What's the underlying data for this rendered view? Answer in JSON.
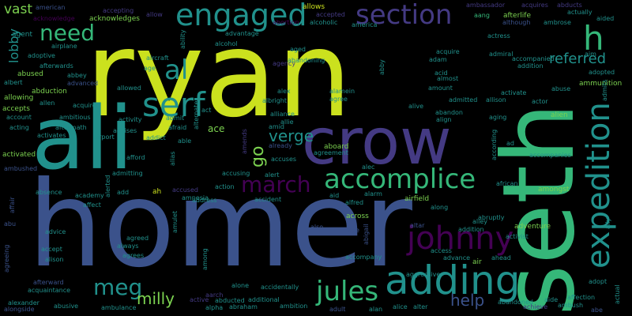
{
  "palette": {
    "background": "#000000",
    "yellow": "#cbe11e",
    "green": "#7cd250",
    "mint": "#35b779",
    "teal": "#21918c",
    "slate": "#3b528b",
    "indigo": "#443a83",
    "violet": "#440154",
    "cyan": "#2c728e"
  },
  "words": [
    {
      "text": "ryan",
      "color": "yellow",
      "weight": 1.0
    },
    {
      "text": "homer",
      "color": "slate",
      "weight": 0.9
    },
    {
      "text": "seth",
      "color": "mint",
      "weight": 0.85
    },
    {
      "text": "ali",
      "color": "teal",
      "weight": 0.65
    },
    {
      "text": "crow",
      "color": "indigo",
      "weight": 0.5
    },
    {
      "text": "adding",
      "color": "teal",
      "weight": 0.35
    },
    {
      "text": "accomplice",
      "color": "mint",
      "weight": 0.3
    },
    {
      "text": "expedition",
      "color": "teal",
      "weight": 0.3
    },
    {
      "text": "johnny",
      "color": "violet",
      "weight": 0.3
    },
    {
      "text": "serf",
      "color": "teal",
      "weight": 0.28
    },
    {
      "text": "engaged",
      "color": "teal",
      "weight": 0.25
    },
    {
      "text": "section",
      "color": "indigo",
      "weight": 0.22
    },
    {
      "text": "march",
      "color": "violet",
      "weight": 0.2
    },
    {
      "text": "jules",
      "color": "mint",
      "weight": 0.2
    },
    {
      "text": "meg",
      "color": "teal",
      "weight": 0.18
    },
    {
      "text": "al",
      "color": "teal",
      "weight": 0.18
    },
    {
      "text": "need",
      "color": "mint",
      "weight": 0.16
    },
    {
      "text": "h",
      "color": "mint",
      "weight": 0.2
    },
    {
      "text": "referred",
      "color": "teal",
      "weight": 0.14
    },
    {
      "text": "milly",
      "color": "green",
      "weight": 0.12
    },
    {
      "text": "help",
      "color": "slate",
      "weight": 0.12
    },
    {
      "text": "verge",
      "color": "teal",
      "weight": 0.11
    },
    {
      "text": "vast",
      "color": "green",
      "weight": 0.1
    },
    {
      "text": "lobby",
      "color": "teal",
      "weight": 0.08
    },
    {
      "text": "go",
      "color": "green",
      "weight": 0.1
    },
    {
      "text": "american",
      "color": "slate",
      "weight": 0.04
    },
    {
      "text": "acknowledge",
      "color": "violet",
      "weight": 0.04
    },
    {
      "text": "accepting",
      "color": "indigo",
      "weight": 0.04
    },
    {
      "text": "acknowledges",
      "color": "green",
      "weight": 0.05
    },
    {
      "text": "allow",
      "color": "indigo",
      "weight": 0.04
    },
    {
      "text": "allows",
      "color": "yellow",
      "weight": 0.05
    },
    {
      "text": "accepted",
      "color": "indigo",
      "weight": 0.04
    },
    {
      "text": "ambassador",
      "color": "indigo",
      "weight": 0.04
    },
    {
      "text": "acquires",
      "color": "indigo",
      "weight": 0.04
    },
    {
      "text": "abducts",
      "color": "indigo",
      "weight": 0.04
    },
    {
      "text": "actually",
      "color": "teal",
      "weight": 0.04
    },
    {
      "text": "aided",
      "color": "teal",
      "weight": 0.04
    },
    {
      "text": "afterlife",
      "color": "green",
      "weight": 0.05
    },
    {
      "text": "aang",
      "color": "mint",
      "weight": 0.04
    },
    {
      "text": "although",
      "color": "slate",
      "weight": 0.04
    },
    {
      "text": "ambrose",
      "color": "teal",
      "weight": 0.04
    },
    {
      "text": "alcoholic",
      "color": "teal",
      "weight": 0.04
    },
    {
      "text": "america",
      "color": "teal",
      "weight": 0.04
    },
    {
      "text": "abortion",
      "color": "violet",
      "weight": 0.04
    },
    {
      "text": "agent",
      "color": "teal",
      "weight": 0.05
    },
    {
      "text": "airplane",
      "color": "teal",
      "weight": 0.04
    },
    {
      "text": "adoptive",
      "color": "teal",
      "weight": 0.04
    },
    {
      "text": "afterwards",
      "color": "teal",
      "weight": 0.04
    },
    {
      "text": "abused",
      "color": "green",
      "weight": 0.05
    },
    {
      "text": "albert",
      "color": "teal",
      "weight": 0.04
    },
    {
      "text": "abbey",
      "color": "teal",
      "weight": 0.04
    },
    {
      "text": "advanced",
      "color": "slate",
      "weight": 0.04
    },
    {
      "text": "abduction",
      "color": "green",
      "weight": 0.05
    },
    {
      "text": "allowing",
      "color": "green",
      "weight": 0.05
    },
    {
      "text": "allen",
      "color": "teal",
      "weight": 0.04
    },
    {
      "text": "accepts",
      "color": "green",
      "weight": 0.05
    },
    {
      "text": "account",
      "color": "teal",
      "weight": 0.04
    },
    {
      "text": "acting",
      "color": "teal",
      "weight": 0.04
    },
    {
      "text": "activates",
      "color": "teal",
      "weight": 0.04
    },
    {
      "text": "activated",
      "color": "green",
      "weight": 0.05
    },
    {
      "text": "ambushed",
      "color": "slate",
      "weight": 0.04
    },
    {
      "text": "absence",
      "color": "teal",
      "weight": 0.04
    },
    {
      "text": "affair",
      "color": "slate",
      "weight": 0.04
    },
    {
      "text": "abu",
      "color": "slate",
      "weight": 0.04
    },
    {
      "text": "agreeing",
      "color": "slate",
      "weight": 0.04
    },
    {
      "text": "alexander",
      "color": "teal",
      "weight": 0.04
    },
    {
      "text": "alongside",
      "color": "slate",
      "weight": 0.04
    },
    {
      "text": "acquaintance",
      "color": "teal",
      "weight": 0.04
    },
    {
      "text": "afterward",
      "color": "slate",
      "weight": 0.04
    },
    {
      "text": "abusive",
      "color": "teal",
      "weight": 0.04
    },
    {
      "text": "ambulance",
      "color": "teal",
      "weight": 0.04
    },
    {
      "text": "alison",
      "color": "teal",
      "weight": 0.04
    },
    {
      "text": "accept",
      "color": "teal",
      "weight": 0.04
    },
    {
      "text": "advice",
      "color": "teal",
      "weight": 0.04
    },
    {
      "text": "affect",
      "color": "teal",
      "weight": 0.04
    },
    {
      "text": "academy",
      "color": "teal",
      "weight": 0.04
    },
    {
      "text": "ambitious",
      "color": "teal",
      "weight": 0.04
    },
    {
      "text": "aftermath",
      "color": "teal",
      "weight": 0.04
    },
    {
      "text": "airport",
      "color": "teal",
      "weight": 0.04
    },
    {
      "text": "acquired",
      "color": "teal",
      "weight": 0.04
    },
    {
      "text": "allowed",
      "color": "teal",
      "weight": 0.04
    },
    {
      "text": "aircraft",
      "color": "teal",
      "weight": 0.04
    },
    {
      "text": "age",
      "color": "teal",
      "weight": 0.04
    },
    {
      "text": "ability",
      "color": "teal",
      "weight": 0.04
    },
    {
      "text": "alcohol",
      "color": "teal",
      "weight": 0.04
    },
    {
      "text": "advantage",
      "color": "teal",
      "weight": 0.04
    },
    {
      "text": "agency",
      "color": "indigo",
      "weight": 0.04
    },
    {
      "text": "abandoning",
      "color": "teal",
      "weight": 0.04
    },
    {
      "text": "aged",
      "color": "teal",
      "weight": 0.04
    },
    {
      "text": "acid",
      "color": "teal",
      "weight": 0.04
    },
    {
      "text": "almost",
      "color": "teal",
      "weight": 0.04
    },
    {
      "text": "acquire",
      "color": "teal",
      "weight": 0.04
    },
    {
      "text": "adam",
      "color": "teal",
      "weight": 0.04
    },
    {
      "text": "amount",
      "color": "teal",
      "weight": 0.04
    },
    {
      "text": "admitted",
      "color": "teal",
      "weight": 0.04
    },
    {
      "text": "allison",
      "color": "teal",
      "weight": 0.04
    },
    {
      "text": "actress",
      "color": "teal",
      "weight": 0.04
    },
    {
      "text": "admiral",
      "color": "teal",
      "weight": 0.04
    },
    {
      "text": "accompanied",
      "color": "teal",
      "weight": 0.04
    },
    {
      "text": "addition",
      "color": "teal",
      "weight": 0.04
    },
    {
      "text": "adopted",
      "color": "teal",
      "weight": 0.04
    },
    {
      "text": "aim",
      "color": "teal",
      "weight": 0.04
    },
    {
      "text": "abuse",
      "color": "teal",
      "weight": 0.04
    },
    {
      "text": "ammunition",
      "color": "green",
      "weight": 0.05
    },
    {
      "text": "actor",
      "color": "teal",
      "weight": 0.04
    },
    {
      "text": "activate",
      "color": "teal",
      "weight": 0.04
    },
    {
      "text": "admits",
      "color": "teal",
      "weight": 0.04
    },
    {
      "text": "alien",
      "color": "green",
      "weight": 0.05
    },
    {
      "text": "aging",
      "color": "teal",
      "weight": 0.04
    },
    {
      "text": "abandon",
      "color": "teal",
      "weight": 0.04
    },
    {
      "text": "align",
      "color": "teal",
      "weight": 0.04
    },
    {
      "text": "alive",
      "color": "teal",
      "weight": 0.04
    },
    {
      "text": "abby",
      "color": "teal",
      "weight": 0.04
    },
    {
      "text": "alamein",
      "color": "teal",
      "weight": 0.04
    },
    {
      "text": "agree",
      "color": "teal",
      "weight": 0.04
    },
    {
      "text": "alex",
      "color": "teal",
      "weight": 0.04
    },
    {
      "text": "albright",
      "color": "teal",
      "weight": 0.04
    },
    {
      "text": "alliance",
      "color": "teal",
      "weight": 0.04
    },
    {
      "text": "allie",
      "color": "teal",
      "weight": 0.04
    },
    {
      "text": "amid",
      "color": "teal",
      "weight": 0.04
    },
    {
      "text": "already",
      "color": "slate",
      "weight": 0.04
    },
    {
      "text": "aboard",
      "color": "green",
      "weight": 0.05
    },
    {
      "text": "agreement",
      "color": "teal",
      "weight": 0.04
    },
    {
      "text": "accuses",
      "color": "teal",
      "weight": 0.04
    },
    {
      "text": "alec",
      "color": "teal",
      "weight": 0.04
    },
    {
      "text": "amends",
      "color": "indigo",
      "weight": 0.04
    },
    {
      "text": "alert",
      "color": "teal",
      "weight": 0.04
    },
    {
      "text": "accusing",
      "color": "teal",
      "weight": 0.04
    },
    {
      "text": "action",
      "color": "teal",
      "weight": 0.04
    },
    {
      "text": "address",
      "color": "teal",
      "weight": 0.04
    },
    {
      "text": "accident",
      "color": "teal",
      "weight": 0.04
    },
    {
      "text": "aid",
      "color": "teal",
      "weight": 0.04
    },
    {
      "text": "alarm",
      "color": "teal",
      "weight": 0.04
    },
    {
      "text": "alfred",
      "color": "teal",
      "weight": 0.04
    },
    {
      "text": "airfield",
      "color": "green",
      "weight": 0.05
    },
    {
      "text": "along",
      "color": "teal",
      "weight": 0.04
    },
    {
      "text": "alley",
      "color": "teal",
      "weight": 0.04
    },
    {
      "text": "abruptly",
      "color": "teal",
      "weight": 0.04
    },
    {
      "text": "african",
      "color": "teal",
      "weight": 0.04
    },
    {
      "text": "amongst",
      "color": "green",
      "weight": 0.05
    },
    {
      "text": "accompanies",
      "color": "teal",
      "weight": 0.04
    },
    {
      "text": "according",
      "color": "teal",
      "weight": 0.04
    },
    {
      "text": "ad",
      "color": "teal",
      "weight": 0.04
    },
    {
      "text": "adventure",
      "color": "green",
      "weight": 0.05
    },
    {
      "text": "activist",
      "color": "teal",
      "weight": 0.04
    },
    {
      "text": "across",
      "color": "green",
      "weight": 0.05
    },
    {
      "text": "altar",
      "color": "slate",
      "weight": 0.04
    },
    {
      "text": "access",
      "color": "teal",
      "weight": 0.04
    },
    {
      "text": "advance",
      "color": "teal",
      "weight": 0.04
    },
    {
      "text": "addition",
      "color": "teal",
      "weight": 0.04
    },
    {
      "text": "air",
      "color": "green",
      "weight": 0.05
    },
    {
      "text": "ahead",
      "color": "teal",
      "weight": 0.04
    },
    {
      "text": "accompany",
      "color": "teal",
      "weight": 0.04
    },
    {
      "text": "abigail",
      "color": "slate",
      "weight": 0.04
    },
    {
      "text": "also",
      "color": "slate",
      "weight": 0.04
    },
    {
      "text": "age",
      "color": "slate",
      "weight": 0.04
    },
    {
      "text": "aggressive",
      "color": "teal",
      "weight": 0.04
    },
    {
      "text": "alice",
      "color": "teal",
      "weight": 0.04
    },
    {
      "text": "alter",
      "color": "teal",
      "weight": 0.04
    },
    {
      "text": "alan",
      "color": "teal",
      "weight": 0.04
    },
    {
      "text": "adult",
      "color": "slate",
      "weight": 0.04
    },
    {
      "text": "ambition",
      "color": "teal",
      "weight": 0.04
    },
    {
      "text": "abandoned",
      "color": "teal",
      "weight": 0.04
    },
    {
      "text": "achieve",
      "color": "indigo",
      "weight": 0.04
    },
    {
      "text": "aide",
      "color": "teal",
      "weight": 0.04
    },
    {
      "text": "affection",
      "color": "teal",
      "weight": 0.04
    },
    {
      "text": "ambush",
      "color": "teal",
      "weight": 0.04
    },
    {
      "text": "abe",
      "color": "slate",
      "weight": 0.04
    },
    {
      "text": "adopt",
      "color": "teal",
      "weight": 0.04
    },
    {
      "text": "actual",
      "color": "teal",
      "weight": 0.04
    },
    {
      "text": "ally",
      "color": "teal",
      "weight": 0.04
    },
    {
      "text": "aarch",
      "color": "indigo",
      "weight": 0.04
    },
    {
      "text": "active",
      "color": "indigo",
      "weight": 0.04
    },
    {
      "text": "abducted",
      "color": "teal",
      "weight": 0.04
    },
    {
      "text": "additional",
      "color": "teal",
      "weight": 0.04
    },
    {
      "text": "alpha",
      "color": "teal",
      "weight": 0.04
    },
    {
      "text": "abraham",
      "color": "teal",
      "weight": 0.04
    },
    {
      "text": "alone",
      "color": "teal",
      "weight": 0.04
    },
    {
      "text": "accidentally",
      "color": "teal",
      "weight": 0.04
    },
    {
      "text": "among",
      "color": "teal",
      "weight": 0.04
    },
    {
      "text": "agrees",
      "color": "teal",
      "weight": 0.04
    },
    {
      "text": "agreed",
      "color": "teal",
      "weight": 0.04
    },
    {
      "text": "always",
      "color": "teal",
      "weight": 0.04
    },
    {
      "text": "amulet",
      "color": "teal",
      "weight": 0.04
    },
    {
      "text": "ah",
      "color": "yellow",
      "weight": 0.05
    },
    {
      "text": "accused",
      "color": "indigo",
      "weight": 0.04
    },
    {
      "text": "amnesia",
      "color": "teal",
      "weight": 0.04
    },
    {
      "text": "add",
      "color": "teal",
      "weight": 0.04
    },
    {
      "text": "alias",
      "color": "teal",
      "weight": 0.04
    },
    {
      "text": "alerted",
      "color": "teal",
      "weight": 0.04
    },
    {
      "text": "admitting",
      "color": "teal",
      "weight": 0.04
    },
    {
      "text": "afford",
      "color": "teal",
      "weight": 0.04
    },
    {
      "text": "addict",
      "color": "teal",
      "weight": 0.04
    },
    {
      "text": "advises",
      "color": "teal",
      "weight": 0.04
    },
    {
      "text": "afraid",
      "color": "teal",
      "weight": 0.04
    },
    {
      "text": "activity",
      "color": "teal",
      "weight": 0.04
    },
    {
      "text": "ace",
      "color": "green",
      "weight": 0.06
    },
    {
      "text": "act",
      "color": "teal",
      "weight": 0.04
    },
    {
      "text": "admit",
      "color": "teal",
      "weight": 0.04
    },
    {
      "text": "able",
      "color": "teal",
      "weight": 0.04
    },
    {
      "text": "alternate",
      "color": "teal",
      "weight": 0.04
    }
  ]
}
